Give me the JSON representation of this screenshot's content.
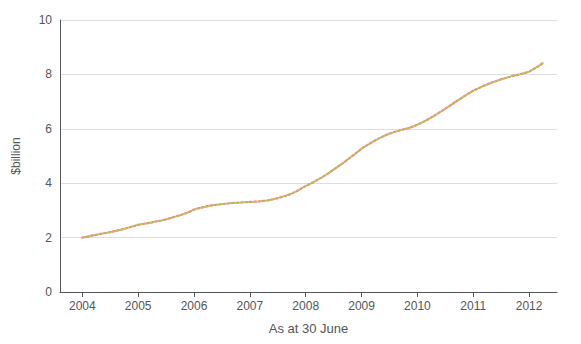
{
  "chart_data": {
    "type": "line",
    "xlabel": "As at 30 June",
    "ylabel": "$billion",
    "x": [
      2004.0,
      2004.083,
      2004.167,
      2004.25,
      2004.333,
      2004.417,
      2004.5,
      2004.583,
      2004.667,
      2004.75,
      2004.833,
      2004.917,
      2005.0,
      2005.083,
      2005.167,
      2005.25,
      2005.333,
      2005.417,
      2005.5,
      2005.583,
      2005.667,
      2005.75,
      2005.833,
      2005.917,
      2006.0,
      2006.083,
      2006.167,
      2006.25,
      2006.333,
      2006.417,
      2006.5,
      2006.583,
      2006.667,
      2006.75,
      2006.833,
      2006.917,
      2007.0,
      2007.083,
      2007.167,
      2007.25,
      2007.333,
      2007.417,
      2007.5,
      2007.583,
      2007.667,
      2007.75,
      2007.833,
      2007.917,
      2008.0,
      2008.083,
      2008.167,
      2008.25,
      2008.333,
      2008.417,
      2008.5,
      2008.583,
      2008.667,
      2008.75,
      2008.833,
      2008.917,
      2009.0,
      2009.083,
      2009.167,
      2009.25,
      2009.333,
      2009.417,
      2009.5,
      2009.583,
      2009.667,
      2009.75,
      2009.833,
      2009.917,
      2010.0,
      2010.083,
      2010.167,
      2010.25,
      2010.333,
      2010.417,
      2010.5,
      2010.583,
      2010.667,
      2010.75,
      2010.833,
      2010.917,
      2011.0,
      2011.083,
      2011.167,
      2011.25,
      2011.333,
      2011.417,
      2011.5,
      2011.583,
      2011.667,
      2011.75,
      2011.833,
      2011.917,
      2012.0,
      2012.083,
      2012.167,
      2012.25
    ],
    "series": [
      {
        "color": "#E88070",
        "line_style": "dotted",
        "values": [
          2.0,
          2.03,
          2.07,
          2.1,
          2.14,
          2.17,
          2.2,
          2.24,
          2.28,
          2.32,
          2.37,
          2.42,
          2.47,
          2.5,
          2.53,
          2.56,
          2.6,
          2.63,
          2.67,
          2.72,
          2.77,
          2.82,
          2.88,
          2.95,
          3.03,
          3.08,
          3.12,
          3.16,
          3.19,
          3.21,
          3.23,
          3.25,
          3.27,
          3.28,
          3.29,
          3.3,
          3.31,
          3.32,
          3.33,
          3.35,
          3.37,
          3.41,
          3.45,
          3.5,
          3.55,
          3.62,
          3.7,
          3.8,
          3.9,
          3.98,
          4.07,
          4.17,
          4.27,
          4.38,
          4.5,
          4.62,
          4.74,
          4.87,
          5.0,
          5.13,
          5.27,
          5.38,
          5.48,
          5.58,
          5.67,
          5.75,
          5.82,
          5.88,
          5.93,
          5.98,
          6.02,
          6.08,
          6.15,
          6.23,
          6.32,
          6.42,
          6.52,
          6.63,
          6.74,
          6.85,
          6.97,
          7.08,
          7.19,
          7.3,
          7.4,
          7.48,
          7.56,
          7.63,
          7.7,
          7.76,
          7.82,
          7.87,
          7.92,
          7.96,
          8.0,
          8.05,
          8.1,
          8.2,
          8.3,
          8.42
        ]
      },
      {
        "color": "#B8C860",
        "line_style": "dotted",
        "values": [
          2.0,
          2.03,
          2.07,
          2.1,
          2.14,
          2.17,
          2.2,
          2.24,
          2.28,
          2.32,
          2.37,
          2.42,
          2.47,
          2.5,
          2.53,
          2.56,
          2.6,
          2.63,
          2.67,
          2.72,
          2.77,
          2.82,
          2.88,
          2.95,
          3.03,
          3.08,
          3.12,
          3.16,
          3.19,
          3.21,
          3.23,
          3.25,
          3.27,
          3.28,
          3.29,
          3.3,
          3.31,
          3.32,
          3.33,
          3.35,
          3.37,
          3.41,
          3.45,
          3.5,
          3.55,
          3.62,
          3.7,
          3.8,
          3.9,
          3.98,
          4.07,
          4.17,
          4.27,
          4.38,
          4.5,
          4.62,
          4.74,
          4.87,
          5.0,
          5.13,
          5.27,
          5.38,
          5.48,
          5.58,
          5.67,
          5.75,
          5.82,
          5.88,
          5.93,
          5.98,
          6.02,
          6.08,
          6.15,
          6.23,
          6.32,
          6.42,
          6.52,
          6.63,
          6.74,
          6.85,
          6.97,
          7.08,
          7.19,
          7.3,
          7.4,
          7.48,
          7.56,
          7.63,
          7.7,
          7.76,
          7.82,
          7.87,
          7.92,
          7.96,
          8.0,
          8.05,
          8.1,
          8.2,
          8.3,
          8.42
        ]
      }
    ],
    "xlim": [
      2003.6,
      2012.5
    ],
    "xticks": [
      2004,
      2005,
      2006,
      2007,
      2008,
      2009,
      2010,
      2011,
      2012
    ],
    "ylim": [
      0,
      10
    ],
    "yticks": [
      0,
      2,
      4,
      6,
      8,
      10
    ],
    "grid": "y"
  }
}
